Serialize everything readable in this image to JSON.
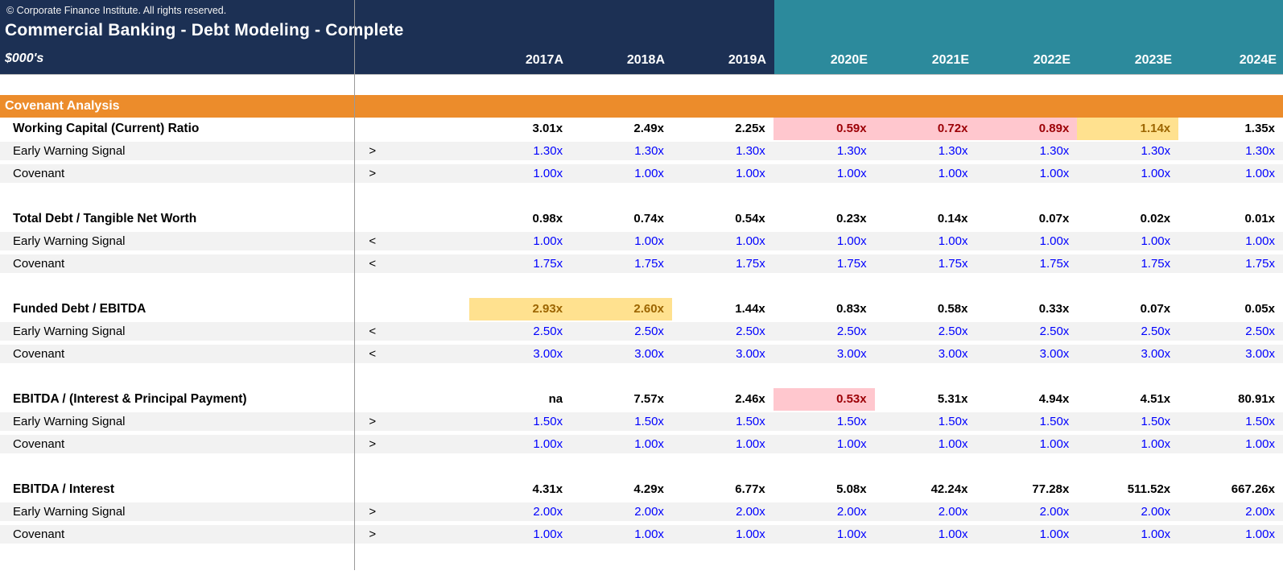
{
  "header": {
    "copyright": "© Corporate Finance Institute. All rights reserved.",
    "title": "Commercial Banking - Debt Modeling - Complete",
    "units": "$000's",
    "years": [
      "2017A",
      "2018A",
      "2019A",
      "2020E",
      "2021E",
      "2022E",
      "2023E",
      "2024E"
    ]
  },
  "banner": "Covenant Analysis",
  "row_labels": {
    "ews": "Early Warning Signal",
    "covenant": "Covenant"
  },
  "sections": [
    {
      "metric": "Working Capital (Current) Ratio",
      "values": [
        "3.01x",
        "2.49x",
        "2.25x",
        "0.59x",
        "0.72x",
        "0.89x",
        "1.14x",
        "1.35x"
      ],
      "value_styles": [
        "",
        "",
        "",
        "bad",
        "bad",
        "bad",
        "neutral",
        ""
      ],
      "ews_op": ">",
      "ews_values": [
        "1.30x",
        "1.30x",
        "1.30x",
        "1.30x",
        "1.30x",
        "1.30x",
        "1.30x",
        "1.30x"
      ],
      "cov_op": ">",
      "cov_values": [
        "1.00x",
        "1.00x",
        "1.00x",
        "1.00x",
        "1.00x",
        "1.00x",
        "1.00x",
        "1.00x"
      ]
    },
    {
      "metric": "Total Debt / Tangible Net Worth",
      "values": [
        "0.98x",
        "0.74x",
        "0.54x",
        "0.23x",
        "0.14x",
        "0.07x",
        "0.02x",
        "0.01x"
      ],
      "value_styles": [
        "",
        "",
        "",
        "",
        "",
        "",
        "",
        ""
      ],
      "ews_op": "<",
      "ews_values": [
        "1.00x",
        "1.00x",
        "1.00x",
        "1.00x",
        "1.00x",
        "1.00x",
        "1.00x",
        "1.00x"
      ],
      "cov_op": "<",
      "cov_values": [
        "1.75x",
        "1.75x",
        "1.75x",
        "1.75x",
        "1.75x",
        "1.75x",
        "1.75x",
        "1.75x"
      ]
    },
    {
      "metric": "Funded Debt / EBITDA",
      "values": [
        "2.93x",
        "2.60x",
        "1.44x",
        "0.83x",
        "0.58x",
        "0.33x",
        "0.07x",
        "0.05x"
      ],
      "value_styles": [
        "neutral",
        "neutral",
        "",
        "",
        "",
        "",
        "",
        ""
      ],
      "ews_op": "<",
      "ews_values": [
        "2.50x",
        "2.50x",
        "2.50x",
        "2.50x",
        "2.50x",
        "2.50x",
        "2.50x",
        "2.50x"
      ],
      "cov_op": "<",
      "cov_values": [
        "3.00x",
        "3.00x",
        "3.00x",
        "3.00x",
        "3.00x",
        "3.00x",
        "3.00x",
        "3.00x"
      ]
    },
    {
      "metric": "EBITDA / (Interest & Principal Payment)",
      "values": [
        "na",
        "7.57x",
        "2.46x",
        "0.53x",
        "5.31x",
        "4.94x",
        "4.51x",
        "80.91x"
      ],
      "value_styles": [
        "",
        "",
        "",
        "bad",
        "",
        "",
        "",
        ""
      ],
      "ews_op": ">",
      "ews_values": [
        "1.50x",
        "1.50x",
        "1.50x",
        "1.50x",
        "1.50x",
        "1.50x",
        "1.50x",
        "1.50x"
      ],
      "cov_op": ">",
      "cov_values": [
        "1.00x",
        "1.00x",
        "1.00x",
        "1.00x",
        "1.00x",
        "1.00x",
        "1.00x",
        "1.00x"
      ]
    },
    {
      "metric": "EBITDA / Interest",
      "values": [
        "4.31x",
        "4.29x",
        "6.77x",
        "5.08x",
        "42.24x",
        "77.28x",
        "511.52x",
        "667.26x"
      ],
      "value_styles": [
        "",
        "",
        "",
        "",
        "",
        "",
        "",
        ""
      ],
      "ews_op": ">",
      "ews_values": [
        "2.00x",
        "2.00x",
        "2.00x",
        "2.00x",
        "2.00x",
        "2.00x",
        "2.00x",
        "2.00x"
      ],
      "cov_op": ">",
      "cov_values": [
        "1.00x",
        "1.00x",
        "1.00x",
        "1.00x",
        "1.00x",
        "1.00x",
        "1.00x",
        "1.00x"
      ]
    }
  ],
  "colors": {
    "header_navy": "#1c3054",
    "header_teal": "#2c8a9c",
    "banner_orange": "#ec8c2b",
    "stripe_gray": "#f2f2f2",
    "threshold_blue": "#0000fe",
    "breach_bg": "#ffc7ce",
    "breach_text": "#9c0006",
    "warning_bg": "#ffe18f",
    "warning_text": "#9c6500"
  }
}
